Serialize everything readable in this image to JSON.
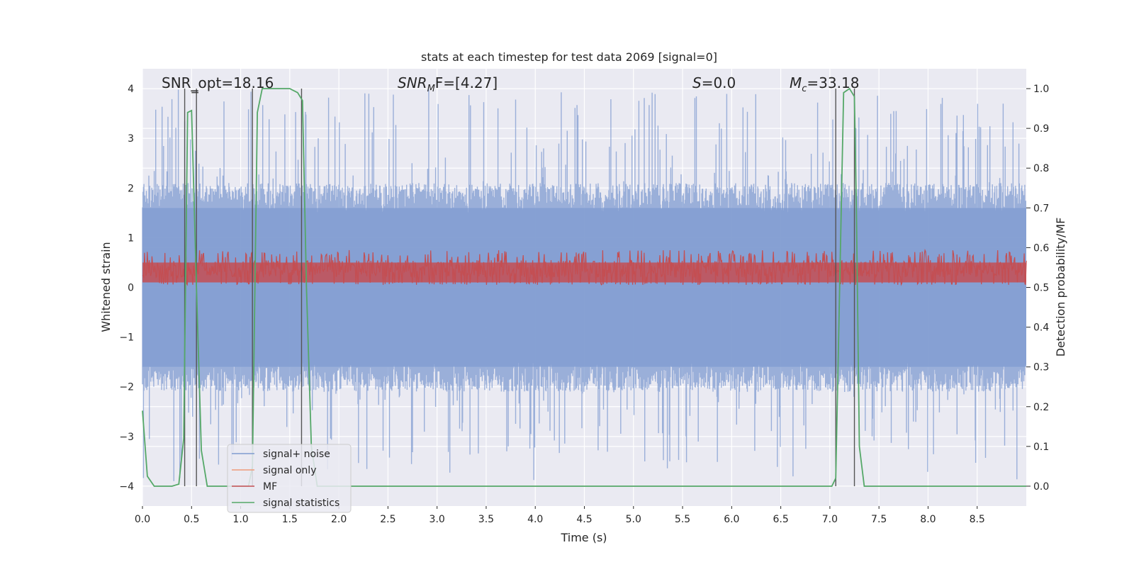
{
  "chart_data": {
    "type": "line",
    "title": "stats at each timestep for test data 2069 [signal=0]",
    "xlabel": "Time (s)",
    "ylabel": "Whitened strain",
    "ylabel_right": "Detection probability/MF",
    "xlim": [
      0,
      9.0
    ],
    "ylim": [
      -4.4,
      4.4
    ],
    "ylim_right": [
      -0.05,
      1.05
    ],
    "x_ticks": [
      0.0,
      0.5,
      1.0,
      1.5,
      2.0,
      2.5,
      3.0,
      3.5,
      4.0,
      4.5,
      5.0,
      5.5,
      6.0,
      6.5,
      7.0,
      7.5,
      8.0,
      8.5
    ],
    "x_tick_labels": [
      "0.0",
      "0.5",
      "1.0",
      "1.5",
      "2.0",
      "2.5",
      "3.0",
      "3.5",
      "4.0",
      "4.5",
      "5.0",
      "5.5",
      "6.0",
      "6.5",
      "7.0",
      "7.5",
      "8.0",
      "8.5"
    ],
    "y_ticks": [
      -4,
      -3,
      -2,
      -1,
      0,
      1,
      2,
      3,
      4
    ],
    "y_tick_labels": [
      "−4",
      "−3",
      "−2",
      "−1",
      "0",
      "1",
      "2",
      "3",
      "4"
    ],
    "y_ticks_right": [
      0.0,
      0.1,
      0.2,
      0.3,
      0.4,
      0.5,
      0.6,
      0.7,
      0.8,
      0.9,
      1.0
    ],
    "y_tick_labels_right": [
      "0.0",
      "0.1",
      "0.2",
      "0.3",
      "0.4",
      "0.5",
      "0.6",
      "0.7",
      "0.8",
      "0.9",
      "1.0"
    ],
    "grid": true,
    "annotations": {
      "snr_opt": "SNR_opt=18.16",
      "snr_mf_label": "SNR",
      "snr_mf_sub": "M",
      "snr_mf_rest": "F=[4.27]",
      "s_label": "S",
      "s_rest": "=0.0",
      "mc_label": "M",
      "mc_sub": "c",
      "mc_rest": "=33.18"
    },
    "legend": {
      "placement": "lower-left",
      "entries": [
        {
          "label": "signal+ noise",
          "color": "#7f9bd0"
        },
        {
          "label": "signal only",
          "color": "#ee9b7a"
        },
        {
          "label": "MF",
          "color": "#c44e52"
        },
        {
          "label": "signal statistics",
          "color": "#55a868"
        }
      ]
    },
    "colors": {
      "background": "#eaeaf2",
      "grid": "#ffffff",
      "noise": "#7f9bd0",
      "mf": "#c44e52",
      "stat": "#55a868",
      "marker": "#555555"
    },
    "noise_series": {
      "name": "signal+ noise",
      "x_range": [
        0,
        9.0
      ],
      "samples": 1800,
      "dense_band": [
        -1.6,
        1.6
      ],
      "peak_range": [
        -3.9,
        4.0
      ]
    },
    "mf_series": {
      "name": "MF",
      "band": [
        0.05,
        0.75
      ]
    },
    "stat_series": {
      "name": "signal statistics",
      "x": [
        0.0,
        0.05,
        0.12,
        0.2,
        0.3,
        0.37,
        0.42,
        0.46,
        0.5,
        0.55,
        0.6,
        0.66,
        0.7,
        0.8,
        1.0,
        1.08,
        1.12,
        1.17,
        1.22,
        1.3,
        1.5,
        1.58,
        1.63,
        1.67,
        1.72,
        1.78,
        1.85,
        2.0,
        3.0,
        4.0,
        5.0,
        6.0,
        7.0,
        7.02,
        7.06,
        7.1,
        7.14,
        7.2,
        7.25,
        7.27,
        7.3,
        7.35,
        7.4,
        8.0,
        9.0
      ],
      "y": [
        0.19,
        0.025,
        0.0,
        0.0,
        0.0,
        0.005,
        0.12,
        0.94,
        0.945,
        0.5,
        0.09,
        0.0,
        0.0,
        0.0,
        0.0,
        0.0,
        0.05,
        0.94,
        1.0,
        1.0,
        1.0,
        0.99,
        0.97,
        0.5,
        0.1,
        0.0,
        0.0,
        0.0,
        0.0,
        0.0,
        0.0,
        0.0,
        0.0,
        0.0,
        0.02,
        0.5,
        0.99,
        1.0,
        0.98,
        0.7,
        0.1,
        0.0,
        0.0,
        0.0,
        0.0
      ]
    },
    "marker_lines_x": [
      0.43,
      0.55,
      1.12,
      1.62,
      7.06,
      7.25
    ],
    "errorbar_x": [
      0.5,
      0.57
    ]
  }
}
